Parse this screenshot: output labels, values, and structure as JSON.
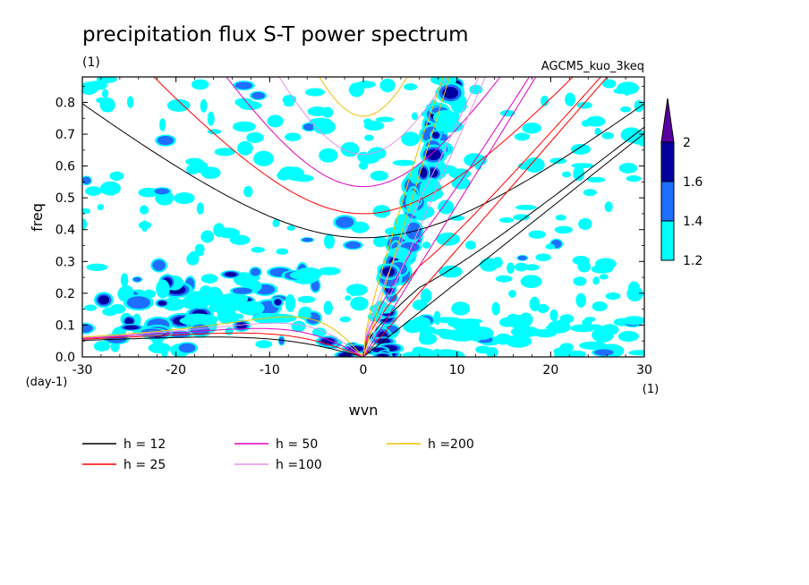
{
  "chart_data": {
    "type": "heatmap",
    "title": "precipitation flux S-T power spectrum",
    "subtitle": "(1)",
    "model_label": "AGCM5_kuo_3keq",
    "xlabel": "wvn",
    "ylabel": "freq",
    "x_unit": "(1)",
    "y_unit": "(day-1)",
    "xlim": [
      -30,
      30
    ],
    "ylim": [
      0,
      0.88
    ],
    "xticks": [
      -30,
      -20,
      -10,
      0,
      10,
      20,
      30
    ],
    "xtick_labels": [
      "-30",
      "-20",
      "-10",
      "0",
      "10",
      "20",
      "30"
    ],
    "yticks": [
      0,
      0.1,
      0.2,
      0.3,
      0.4,
      0.5,
      0.6,
      0.7,
      0.8
    ],
    "ytick_labels": [
      "0.0",
      "0.1",
      "0.2",
      "0.3",
      "0.4",
      "0.5",
      "0.6",
      "0.7",
      "0.8"
    ],
    "colorbar": {
      "levels": [
        1.2,
        1.4,
        1.6,
        2
      ],
      "labels": [
        "1.2",
        "1.4",
        "1.6",
        "2"
      ],
      "colors": [
        "#00ffff",
        "#1e6eff",
        "#0000a0",
        "#5a00a0"
      ]
    },
    "dispersion_curves": [
      {
        "label": "h = 12",
        "h": 12,
        "color": "#000000"
      },
      {
        "label": "h = 25",
        "h": 25,
        "color": "#ff0000"
      },
      {
        "label": "h = 50",
        "h": 50,
        "color": "#e000c0"
      },
      {
        "label": "h =100",
        "h": 100,
        "color": "#e890e8"
      },
      {
        "label": "h =200",
        "h": 200,
        "color": "#f0c000"
      }
    ],
    "features": [
      {
        "type": "kelvin-band",
        "wvn_range": [
          1,
          10
        ],
        "freq_range": [
          0.05,
          0.88
        ],
        "level": 1.6
      },
      {
        "type": "rossby-band",
        "wvn_range": [
          -28,
          -5
        ],
        "freq_range": [
          0.02,
          0.3
        ],
        "level": 1.4
      },
      {
        "type": "mrg-low-freq",
        "wvn_range": [
          -4,
          4
        ],
        "freq_range": [
          0,
          0.06
        ],
        "level": 1.6
      }
    ]
  }
}
